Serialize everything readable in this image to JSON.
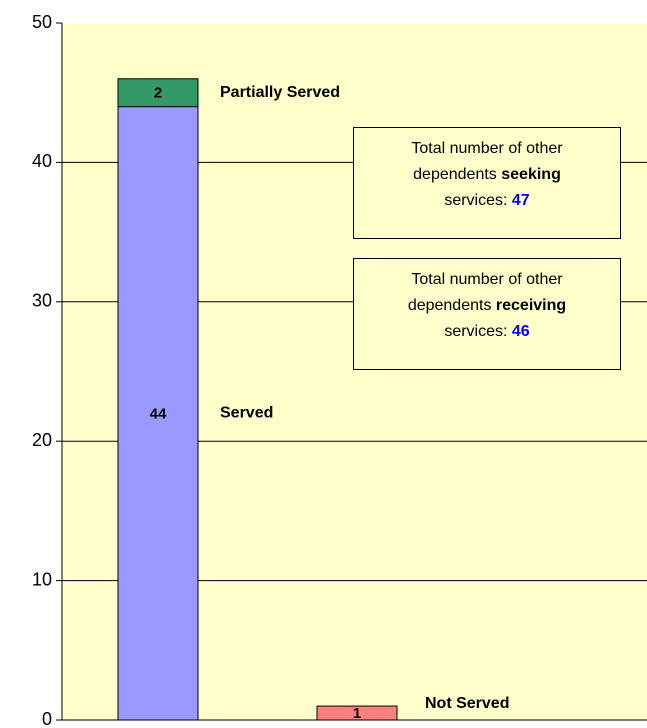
{
  "chart_data": {
    "type": "stacked_bar",
    "categories": [
      null,
      null
    ],
    "series": [
      {
        "name": "Served",
        "color": "#9999ff",
        "values": [
          44,
          null
        ]
      },
      {
        "name": "Partially Served",
        "color": "#339966",
        "values": [
          2,
          null
        ]
      },
      {
        "name": "Not Served",
        "color": "#ff8080",
        "values": [
          null,
          1
        ]
      }
    ],
    "ylim": [
      0,
      50
    ],
    "yticks": [
      0,
      10,
      20,
      30,
      40,
      50
    ],
    "grid": true,
    "annotations": [
      {
        "lead": "Total number of other dependents",
        "keyword": "seeking",
        "tail": "services:",
        "value": 47
      },
      {
        "lead": "Total number of other dependents",
        "keyword": "receiving",
        "tail": "services:",
        "value": 46
      }
    ]
  }
}
